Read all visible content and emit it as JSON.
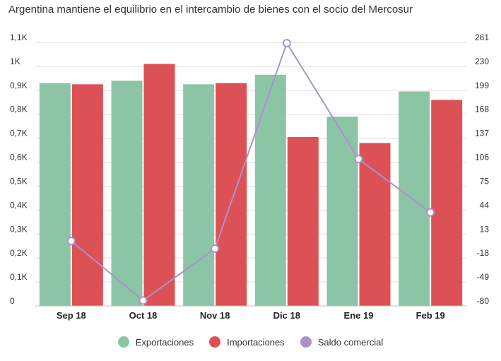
{
  "chart_data": {
    "type": "bar",
    "title": "Argentina mantiene el equilibrio en el intercambio de bienes con el socio del Mercosur",
    "categories": [
      "Sep 18",
      "Oct 18",
      "Nov 18",
      "Dic 18",
      "Ene 19",
      "Feb 19"
    ],
    "series": [
      {
        "name": "Exportaciones",
        "type": "bar",
        "axis": "left",
        "color": "#8cc4a6",
        "values": [
          930,
          940,
          925,
          965,
          790,
          895
        ]
      },
      {
        "name": "Importaciones",
        "type": "bar",
        "axis": "left",
        "color": "#dc5155",
        "values": [
          925,
          1010,
          930,
          705,
          680,
          860
        ]
      },
      {
        "name": "Saldo comercial",
        "type": "line",
        "axis": "right",
        "color": "#ab93c9",
        "values": [
          4,
          -73,
          -6,
          260,
          110,
          41
        ]
      }
    ],
    "y_left": {
      "ylim": [
        0,
        1100
      ],
      "ticks": [
        "0",
        "0,1K",
        "0,2K",
        "0,3K",
        "0,4K",
        "0,5K",
        "0,6K",
        "0,7K",
        "0,8K",
        "0,9K",
        "1K",
        "1,1K"
      ]
    },
    "y_right": {
      "ylim": [
        -80,
        261
      ],
      "ticks": [
        "-80",
        "-49",
        "-18",
        "13",
        "44",
        "75",
        "106",
        "137",
        "168",
        "199",
        "230",
        "261"
      ]
    },
    "grid": true,
    "legend": "bottom-center"
  }
}
